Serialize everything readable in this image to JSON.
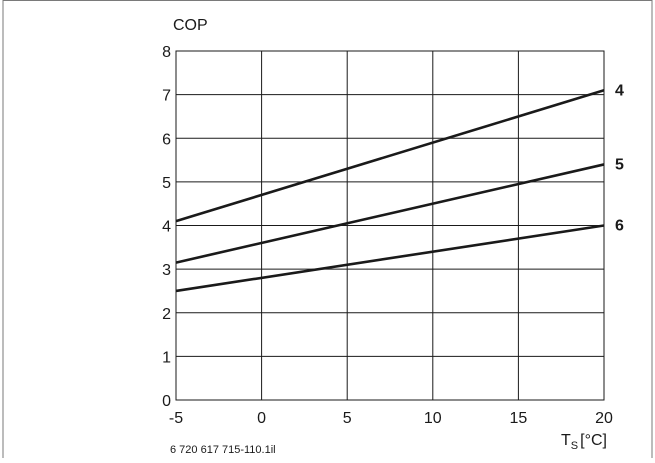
{
  "chart_data": {
    "type": "line",
    "ylabel": "COP",
    "xlabel_main": "T",
    "xlabel_sub": "S",
    "xlabel_unit": "[°C]",
    "xlim": [
      -5,
      20
    ],
    "ylim": [
      0,
      8
    ],
    "x_ticks": [
      -5,
      0,
      5,
      10,
      15,
      20
    ],
    "x_tick_labels": [
      "-5",
      "0",
      "5",
      "10",
      "15",
      "20"
    ],
    "y_ticks": [
      0,
      1,
      2,
      3,
      4,
      5,
      6,
      7,
      8
    ],
    "y_tick_labels": [
      "0",
      "1",
      "2",
      "3",
      "4",
      "5",
      "6",
      "7",
      "8"
    ],
    "grid": true,
    "series": [
      {
        "name": "4",
        "x": [
          -5,
          20
        ],
        "y": [
          4.1,
          7.1
        ]
      },
      {
        "name": "5",
        "x": [
          -5,
          20
        ],
        "y": [
          3.15,
          5.4
        ]
      },
      {
        "name": "6",
        "x": [
          -5,
          20
        ],
        "y": [
          2.5,
          4.0
        ]
      }
    ],
    "figure_id": "6 720 617 715-110.1il"
  }
}
